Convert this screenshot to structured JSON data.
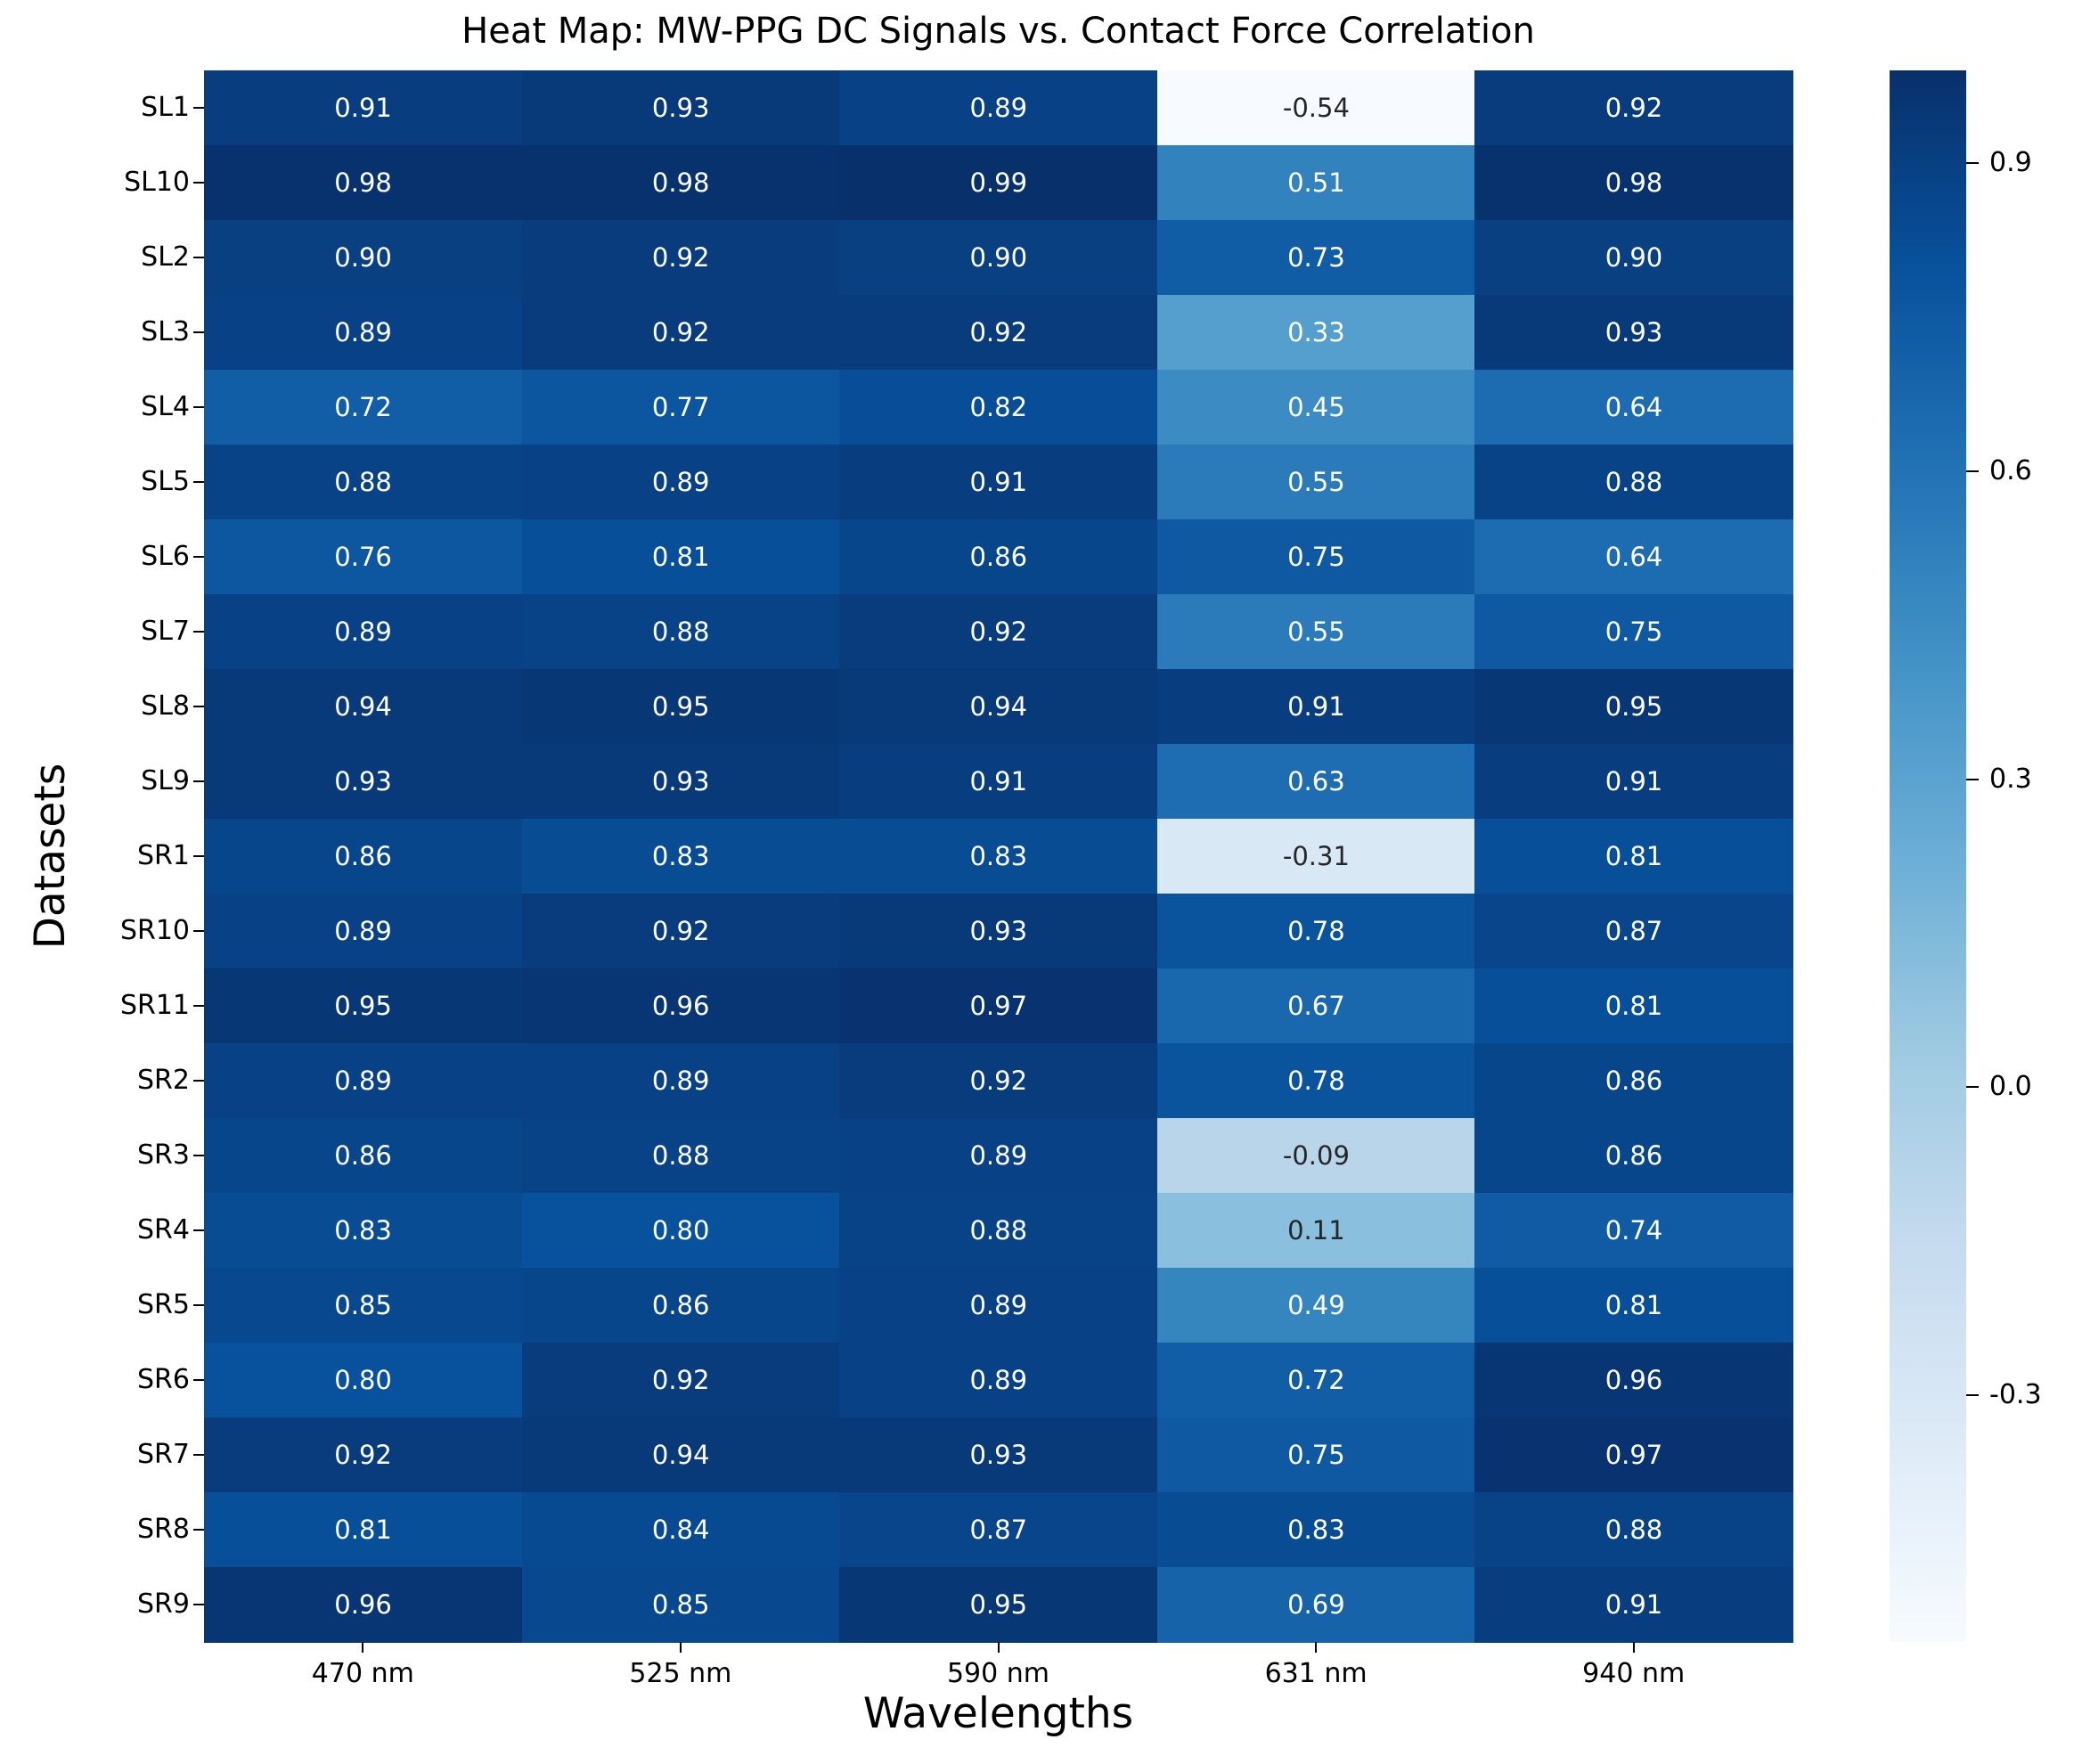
{
  "chart_data": {
    "type": "heatmap",
    "title": "Heat Map: MW-PPG DC Signals vs. Contact Force Correlation",
    "xlabel": "Wavelengths",
    "ylabel": "Datasets",
    "columns": [
      "470 nm",
      "525 nm",
      "590 nm",
      "631 nm",
      "940 nm"
    ],
    "rows": [
      "SL1",
      "SL10",
      "SL2",
      "SL3",
      "SL4",
      "SL5",
      "SL6",
      "SL7",
      "SL8",
      "SL9",
      "SR1",
      "SR10",
      "SR11",
      "SR2",
      "SR3",
      "SR4",
      "SR5",
      "SR6",
      "SR7",
      "SR8",
      "SR9"
    ],
    "values": [
      [
        0.91,
        0.93,
        0.89,
        -0.54,
        0.92
      ],
      [
        0.98,
        0.98,
        0.99,
        0.51,
        0.98
      ],
      [
        0.9,
        0.92,
        0.9,
        0.73,
        0.9
      ],
      [
        0.89,
        0.92,
        0.92,
        0.33,
        0.93
      ],
      [
        0.72,
        0.77,
        0.82,
        0.45,
        0.64
      ],
      [
        0.88,
        0.89,
        0.91,
        0.55,
        0.88
      ],
      [
        0.76,
        0.81,
        0.86,
        0.75,
        0.64
      ],
      [
        0.89,
        0.88,
        0.92,
        0.55,
        0.75
      ],
      [
        0.94,
        0.95,
        0.94,
        0.91,
        0.95
      ],
      [
        0.93,
        0.93,
        0.91,
        0.63,
        0.91
      ],
      [
        0.86,
        0.83,
        0.83,
        -0.31,
        0.81
      ],
      [
        0.89,
        0.92,
        0.93,
        0.78,
        0.87
      ],
      [
        0.95,
        0.96,
        0.97,
        0.67,
        0.81
      ],
      [
        0.89,
        0.89,
        0.92,
        0.78,
        0.86
      ],
      [
        0.86,
        0.88,
        0.89,
        -0.09,
        0.86
      ],
      [
        0.83,
        0.8,
        0.88,
        0.11,
        0.74
      ],
      [
        0.85,
        0.86,
        0.89,
        0.49,
        0.81
      ],
      [
        0.8,
        0.92,
        0.89,
        0.72,
        0.96
      ],
      [
        0.92,
        0.94,
        0.93,
        0.75,
        0.97
      ],
      [
        0.81,
        0.84,
        0.87,
        0.83,
        0.88
      ],
      [
        0.96,
        0.85,
        0.95,
        0.69,
        0.91
      ]
    ],
    "colormap": "Blues",
    "vmin": -0.54,
    "vmax": 0.99,
    "colorbar_ticks": [
      0.9,
      0.6,
      0.3,
      0.0,
      -0.3
    ],
    "legend_position": "right-colorbar",
    "grid": false,
    "annotation_colors": {
      "dark_text": "#262626",
      "light_text": "#ffffff"
    }
  }
}
